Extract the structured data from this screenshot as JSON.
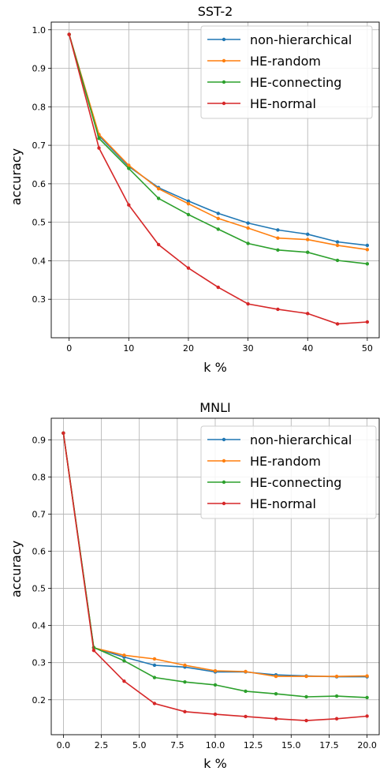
{
  "chart_data": [
    {
      "type": "line",
      "title": "SST-2",
      "xlabel": "k %",
      "ylabel": "accuracy",
      "xlim": [
        -3,
        52
      ],
      "ylim": [
        0.2,
        1.02
      ],
      "xticks": [
        0,
        10,
        20,
        30,
        40,
        50
      ],
      "xtick_labels": [
        "0",
        "10",
        "20",
        "30",
        "40",
        "50"
      ],
      "yticks": [
        0.3,
        0.4,
        0.5,
        0.6,
        0.7,
        0.8,
        0.9,
        1.0
      ],
      "ytick_labels": [
        "0.3",
        "0.4",
        "0.5",
        "0.6",
        "0.7",
        "0.8",
        "0.9",
        "1.0"
      ],
      "grid": true,
      "legend_position": "top-right",
      "x": [
        0,
        5,
        10,
        15,
        20,
        25,
        30,
        35,
        40,
        45,
        50
      ],
      "series": [
        {
          "name": "non-hierarchical",
          "color": "#1f77b4",
          "values": [
            0.988,
            0.725,
            0.645,
            0.59,
            0.555,
            0.523,
            0.498,
            0.48,
            0.469,
            0.449,
            0.44
          ]
        },
        {
          "name": "HE-random",
          "color": "#ff7f0e",
          "values": [
            0.988,
            0.728,
            0.648,
            0.587,
            0.548,
            0.51,
            0.485,
            0.459,
            0.455,
            0.44,
            0.429
          ]
        },
        {
          "name": "HE-connecting",
          "color": "#2ca02c",
          "values": [
            0.988,
            0.718,
            0.64,
            0.562,
            0.52,
            0.482,
            0.445,
            0.428,
            0.422,
            0.401,
            0.392
          ]
        },
        {
          "name": "HE-normal",
          "color": "#d62728",
          "values": [
            0.988,
            0.693,
            0.545,
            0.442,
            0.381,
            0.331,
            0.288,
            0.274,
            0.263,
            0.236,
            0.241
          ]
        }
      ]
    },
    {
      "type": "line",
      "title": "MNLI",
      "xlabel": "k %",
      "ylabel": "accuracy",
      "xlim": [
        -0.8,
        20.8
      ],
      "ylim": [
        0.106,
        0.958
      ],
      "xticks": [
        0,
        2.5,
        5,
        7.5,
        10,
        12.5,
        15,
        17.5,
        20
      ],
      "xtick_labels": [
        "0.0",
        "2.5",
        "5.0",
        "7.5",
        "10.0",
        "12.5",
        "15.0",
        "17.5",
        "20.0"
      ],
      "yticks": [
        0.2,
        0.3,
        0.4,
        0.5,
        0.6,
        0.7,
        0.8,
        0.9
      ],
      "ytick_labels": [
        "0.2",
        "0.3",
        "0.4",
        "0.5",
        "0.6",
        "0.7",
        "0.8",
        "0.9"
      ],
      "grid": true,
      "legend_position": "top-right",
      "x": [
        0,
        2,
        4,
        6,
        8,
        10,
        12,
        14,
        16,
        18,
        20
      ],
      "series": [
        {
          "name": "non-hierarchical",
          "color": "#1f77b4",
          "values": [
            0.918,
            0.34,
            0.315,
            0.293,
            0.288,
            0.275,
            0.275,
            0.267,
            0.264,
            0.262,
            0.262
          ]
        },
        {
          "name": "HE-random",
          "color": "#ff7f0e",
          "values": [
            0.918,
            0.34,
            0.32,
            0.31,
            0.293,
            0.278,
            0.276,
            0.263,
            0.263,
            0.263,
            0.264
          ]
        },
        {
          "name": "HE-connecting",
          "color": "#2ca02c",
          "values": [
            0.918,
            0.341,
            0.305,
            0.26,
            0.248,
            0.24,
            0.223,
            0.216,
            0.208,
            0.21,
            0.206
          ]
        },
        {
          "name": "HE-normal",
          "color": "#d62728",
          "values": [
            0.918,
            0.333,
            0.25,
            0.19,
            0.168,
            0.161,
            0.155,
            0.149,
            0.144,
            0.149,
            0.156
          ]
        }
      ]
    }
  ]
}
